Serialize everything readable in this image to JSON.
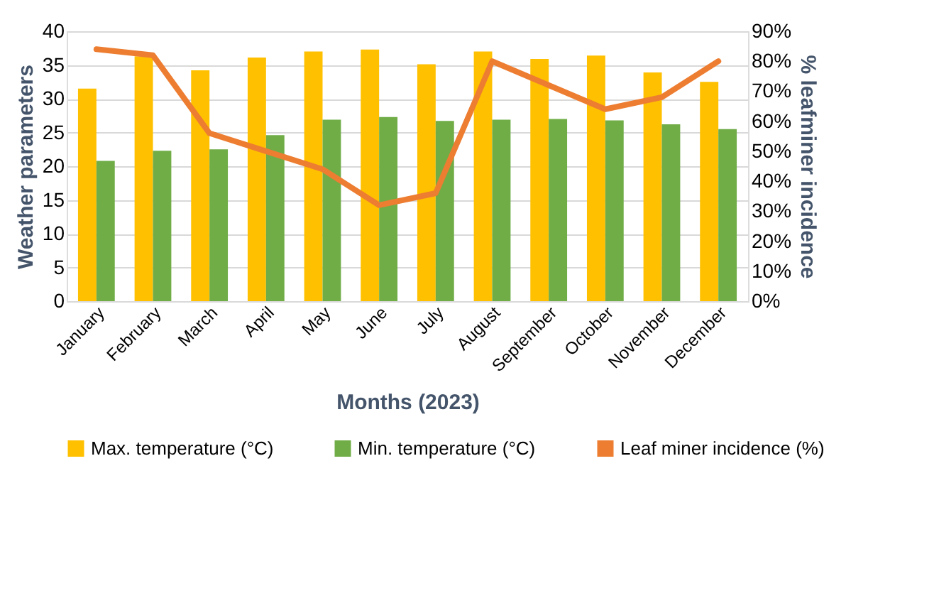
{
  "chart_data": {
    "type": "bar",
    "xlabel": "Months (2023)",
    "ylabel": "Weather parameters",
    "y2label": "% leafminer incidence",
    "categories": [
      "January",
      "February",
      "March",
      "April",
      "May",
      "June",
      "July",
      "August",
      "September",
      "October",
      "November",
      "December"
    ],
    "series": [
      {
        "name": "Max. temperature (°C)",
        "color": "#ffc000",
        "values": [
          31.5,
          36.3,
          34.2,
          36.1,
          37.0,
          37.3,
          35.1,
          37.0,
          35.9,
          36.4,
          33.9,
          32.5
        ]
      },
      {
        "name": "Min. temperature (°C)",
        "color": "#70ad47",
        "values": [
          20.8,
          22.3,
          22.5,
          24.6,
          26.9,
          27.3,
          26.7,
          26.9,
          27.0,
          26.8,
          26.2,
          25.5
        ]
      },
      {
        "name": "Leaf miner incidence (%)",
        "color": "#ed7d31",
        "type": "line",
        "axis": "y2",
        "values": [
          84,
          82,
          56,
          50,
          44,
          32,
          36,
          80,
          72,
          64,
          68,
          80
        ]
      }
    ],
    "ylim": [
      0,
      40
    ],
    "yticks": [
      0,
      5,
      10,
      15,
      20,
      25,
      30,
      35,
      40
    ],
    "y2lim": [
      0,
      90
    ],
    "y2ticks": [
      {
        "value": 0,
        "label": "0%"
      },
      {
        "value": 10,
        "label": "10%"
      },
      {
        "value": 20,
        "label": "20%"
      },
      {
        "value": 30,
        "label": "30%"
      },
      {
        "value": 40,
        "label": "40%"
      },
      {
        "value": 50,
        "label": "50%"
      },
      {
        "value": 60,
        "label": "60%"
      },
      {
        "value": 70,
        "label": "70%"
      },
      {
        "value": 80,
        "label": "80%"
      },
      {
        "value": 90,
        "label": "90%"
      }
    ],
    "grid": "y",
    "legend": "bottom"
  }
}
